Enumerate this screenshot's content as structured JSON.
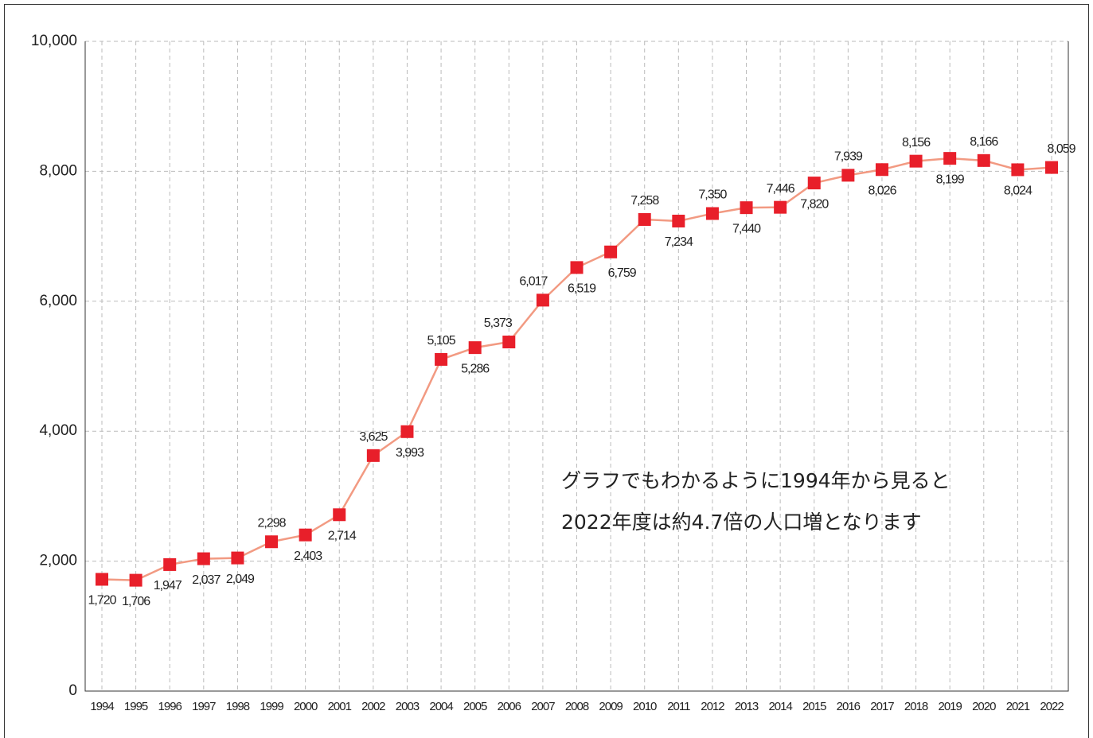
{
  "chart_data": {
    "type": "line",
    "categories": [
      "1994",
      "1995",
      "1996",
      "1997",
      "1998",
      "1999",
      "2000",
      "2001",
      "2002",
      "2003",
      "2004",
      "2005",
      "2006",
      "2007",
      "2008",
      "2009",
      "2010",
      "2011",
      "2012",
      "2013",
      "2014",
      "2015",
      "2016",
      "2017",
      "2018",
      "2019",
      "2020",
      "2021",
      "2022"
    ],
    "series": [
      {
        "color": "#f29a82",
        "marker_color": "#e81f2a",
        "values": [
          1720,
          1706,
          1947,
          2037,
          2049,
          2298,
          2403,
          2714,
          3625,
          3993,
          5105,
          5286,
          5373,
          6017,
          6519,
          6759,
          7258,
          7234,
          7350,
          7440,
          7446,
          7820,
          7939,
          8026,
          8156,
          8199,
          8166,
          8024,
          8059
        ],
        "value_labels": [
          "1,720",
          "1,706",
          "1,947",
          "2,037",
          "2,049",
          "2,298",
          "2,403",
          "2,714",
          "3,625",
          "3,993",
          "5,105",
          "5,286",
          "5,373",
          "6,017",
          "6,519",
          "6,759",
          "7,258",
          "7,234",
          "7,350",
          "7,440",
          "7,446",
          "7,820",
          "7,939",
          "8,026",
          "8,156",
          "8,199",
          "8,166",
          "8,024",
          "8,059"
        ]
      }
    ],
    "ylim": [
      0,
      10000
    ],
    "yticks": [
      0,
      {
        "value": 2000,
        "label": "2,000"
      },
      {
        "value": 4000,
        "label": "4,000"
      },
      {
        "value": 6000,
        "label": "6,000"
      },
      {
        "value": 8000,
        "label": "8,000"
      },
      {
        "value": 10000,
        "label": "10,000"
      }
    ],
    "grid": true,
    "annotation": [
      "グラフでもわかるように1994年から見ると",
      "2022年度は約4.7倍の人口増となります"
    ]
  }
}
